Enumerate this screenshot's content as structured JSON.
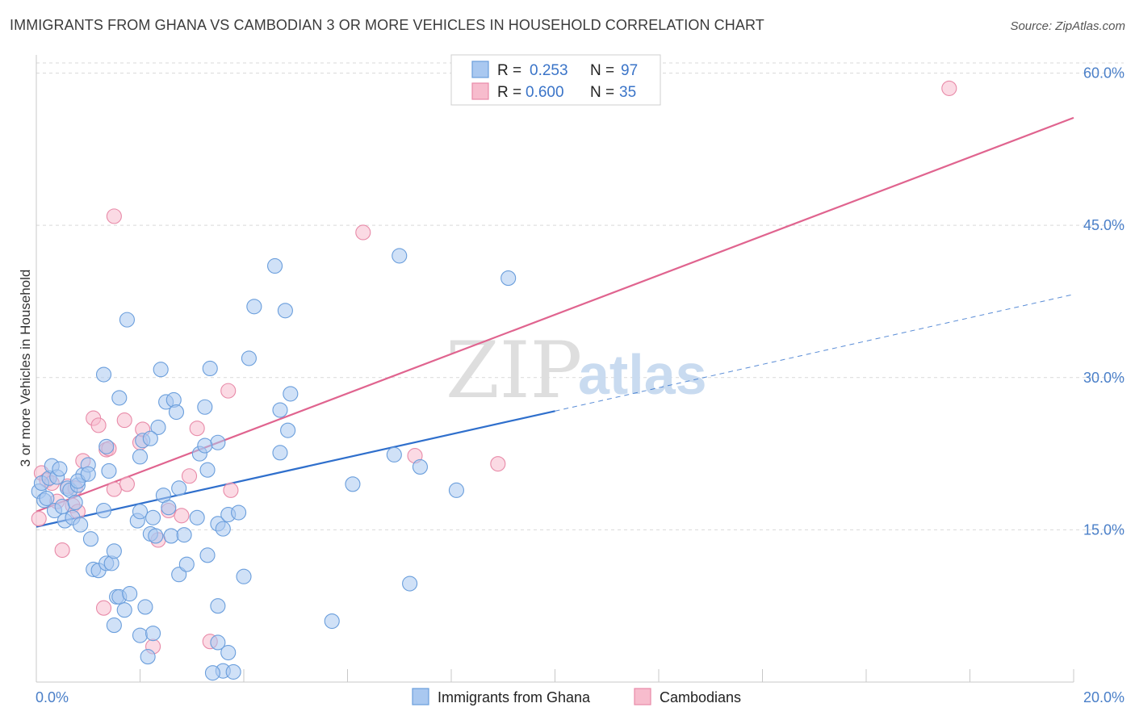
{
  "title": "IMMIGRANTS FROM GHANA VS CAMBODIAN 3 OR MORE VEHICLES IN HOUSEHOLD CORRELATION CHART",
  "source": "Source: ZipAtlas.com",
  "watermark": {
    "zip": "ZIP",
    "atlas": "atlas"
  },
  "legend": {
    "rows": [
      {
        "r_label": "R =",
        "r_value": "0.253",
        "n_label": "N =",
        "n_value": "97"
      },
      {
        "r_label": "R =",
        "r_value": "0.600",
        "n_label": "N =",
        "n_value": "35"
      }
    ]
  },
  "colors": {
    "ghana_fill": "#a9c8f0",
    "ghana_stroke": "#6a9edc",
    "ghana_line": "#2f6fcc",
    "camb_fill": "#f7bccd",
    "camb_stroke": "#e88aa8",
    "camb_line": "#e0648f",
    "tick_text": "#4a7fc8",
    "grid": "#d9d9d9"
  },
  "chart_data": {
    "type": "scatter",
    "ylabel": "3 or more Vehicles in Household",
    "xlim": [
      0,
      20
    ],
    "ylim": [
      0,
      61
    ],
    "x_tick_labels": [
      {
        "value": 0,
        "label": "0.0%"
      },
      {
        "value": 20,
        "label": "20.0%"
      }
    ],
    "y_tick_labels": [
      {
        "value": 15,
        "label": "15.0%"
      },
      {
        "value": 30,
        "label": "30.0%"
      },
      {
        "value": 45,
        "label": "45.0%"
      },
      {
        "value": 60,
        "label": "60.0%"
      }
    ],
    "x_minor_ticks": [
      2,
      4,
      6,
      8,
      10,
      12,
      14,
      16,
      18,
      20
    ],
    "grid": true,
    "legend_position": "top-center",
    "series": [
      {
        "name": "Immigrants from Ghana",
        "key": "ghana",
        "trend": {
          "x": [
            0,
            10
          ],
          "y": [
            15.3,
            26.7
          ],
          "extend_x": [
            10,
            20
          ],
          "extend_y": [
            26.7,
            38.2
          ]
        },
        "points": [
          [
            0.05,
            18.8
          ],
          [
            0.1,
            19.6
          ],
          [
            0.15,
            17.9
          ],
          [
            0.2,
            18.1
          ],
          [
            0.25,
            20.1
          ],
          [
            0.3,
            21.3
          ],
          [
            0.35,
            16.9
          ],
          [
            0.4,
            20.2
          ],
          [
            0.45,
            21.0
          ],
          [
            0.5,
            17.3
          ],
          [
            0.55,
            15.9
          ],
          [
            0.6,
            19.1
          ],
          [
            0.65,
            18.9
          ],
          [
            0.7,
            16.2
          ],
          [
            0.75,
            17.7
          ],
          [
            0.8,
            19.4
          ],
          [
            0.85,
            15.5
          ],
          [
            0.9,
            20.4
          ],
          [
            1.0,
            21.4
          ],
          [
            1.05,
            14.1
          ],
          [
            1.1,
            11.1
          ],
          [
            1.2,
            11.0
          ],
          [
            1.3,
            16.9
          ],
          [
            1.35,
            11.7
          ],
          [
            1.45,
            11.7
          ],
          [
            1.5,
            12.9
          ],
          [
            1.55,
            8.4
          ],
          [
            1.6,
            8.4
          ],
          [
            1.7,
            7.1
          ],
          [
            1.8,
            8.7
          ],
          [
            1.5,
            5.6
          ],
          [
            2.0,
            4.6
          ],
          [
            2.1,
            7.4
          ],
          [
            2.15,
            2.5
          ],
          [
            2.25,
            4.8
          ],
          [
            1.95,
            15.9
          ],
          [
            2.0,
            16.8
          ],
          [
            2.2,
            14.6
          ],
          [
            2.25,
            16.2
          ],
          [
            2.3,
            14.4
          ],
          [
            2.45,
            18.4
          ],
          [
            2.55,
            17.2
          ],
          [
            2.6,
            14.4
          ],
          [
            2.75,
            19.1
          ],
          [
            2.85,
            14.5
          ],
          [
            2.75,
            10.6
          ],
          [
            2.9,
            11.6
          ],
          [
            3.1,
            16.2
          ],
          [
            3.3,
            12.5
          ],
          [
            3.5,
            15.6
          ],
          [
            3.6,
            15.1
          ],
          [
            3.7,
            16.5
          ],
          [
            3.15,
            22.5
          ],
          [
            3.3,
            20.9
          ],
          [
            3.5,
            23.6
          ],
          [
            3.9,
            16.7
          ],
          [
            4.0,
            10.4
          ],
          [
            3.6,
            1.1
          ],
          [
            3.7,
            2.9
          ],
          [
            3.8,
            1.0
          ],
          [
            3.5,
            3.9
          ],
          [
            3.5,
            7.5
          ],
          [
            3.4,
            0.9
          ],
          [
            1.3,
            30.3
          ],
          [
            1.6,
            28.0
          ],
          [
            1.75,
            35.7
          ],
          [
            2.0,
            22.2
          ],
          [
            2.05,
            23.8
          ],
          [
            2.4,
            30.8
          ],
          [
            2.5,
            27.6
          ],
          [
            2.65,
            27.8
          ],
          [
            2.7,
            26.6
          ],
          [
            3.35,
            30.9
          ],
          [
            3.25,
            27.1
          ],
          [
            3.25,
            23.3
          ],
          [
            4.1,
            31.9
          ],
          [
            4.2,
            37.0
          ],
          [
            4.6,
            41.0
          ],
          [
            4.8,
            36.6
          ],
          [
            4.7,
            26.8
          ],
          [
            4.9,
            28.4
          ],
          [
            4.85,
            24.8
          ],
          [
            4.7,
            22.6
          ],
          [
            6.1,
            19.5
          ],
          [
            6.9,
            22.4
          ],
          [
            7.0,
            42.0
          ],
          [
            7.4,
            21.2
          ],
          [
            8.1,
            18.9
          ],
          [
            9.1,
            39.8
          ],
          [
            7.2,
            9.7
          ],
          [
            5.7,
            6.0
          ],
          [
            1.35,
            23.2
          ],
          [
            2.35,
            25.1
          ],
          [
            0.8,
            19.8
          ],
          [
            1.0,
            20.5
          ],
          [
            1.4,
            20.8
          ],
          [
            2.2,
            24.0
          ]
        ]
      },
      {
        "name": "Cambodians",
        "key": "camb",
        "trend": {
          "x": [
            0,
            20
          ],
          "y": [
            16.8,
            55.6
          ]
        },
        "points": [
          [
            0.05,
            16.1
          ],
          [
            0.1,
            20.6
          ],
          [
            0.2,
            19.9
          ],
          [
            0.3,
            19.6
          ],
          [
            0.4,
            17.8
          ],
          [
            0.5,
            13.0
          ],
          [
            0.6,
            19.3
          ],
          [
            0.7,
            17.4
          ],
          [
            0.8,
            16.8
          ],
          [
            0.9,
            21.8
          ],
          [
            1.1,
            26.0
          ],
          [
            1.2,
            25.3
          ],
          [
            1.35,
            22.9
          ],
          [
            1.5,
            19.0
          ],
          [
            1.7,
            25.8
          ],
          [
            1.75,
            19.5
          ],
          [
            2.0,
            23.6
          ],
          [
            2.05,
            24.9
          ],
          [
            2.35,
            14.0
          ],
          [
            2.55,
            16.9
          ],
          [
            2.8,
            16.4
          ],
          [
            3.1,
            25.0
          ],
          [
            3.7,
            28.7
          ],
          [
            3.75,
            18.9
          ],
          [
            1.5,
            45.9
          ],
          [
            6.3,
            44.3
          ],
          [
            7.3,
            22.3
          ],
          [
            8.9,
            21.5
          ],
          [
            17.6,
            58.5
          ],
          [
            1.3,
            7.3
          ],
          [
            2.25,
            3.5
          ],
          [
            3.35,
            4.0
          ],
          [
            1.4,
            23.0
          ],
          [
            0.75,
            19.1
          ],
          [
            2.95,
            20.3
          ]
        ]
      }
    ]
  },
  "bottom_legend": [
    {
      "label": "Immigrants from Ghana"
    },
    {
      "label": "Cambodians"
    }
  ]
}
